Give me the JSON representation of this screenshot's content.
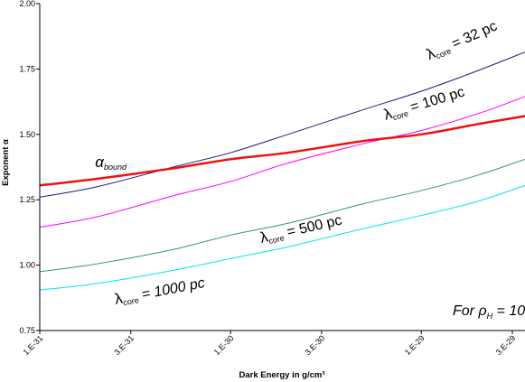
{
  "chart_data": {
    "type": "line",
    "title": "",
    "xlabel": "Dark Energy in g/cm³",
    "ylabel": "Exponent α",
    "xscale": "log",
    "xlim": [
      1e-31,
      3.5e-29
    ],
    "ylim": [
      0.75,
      2.0
    ],
    "x_ticks": [
      {
        "value": 1e-31,
        "label": "1.E-31"
      },
      {
        "value": 3e-31,
        "label": "3.E-31"
      },
      {
        "value": 1e-30,
        "label": "1.E-30"
      },
      {
        "value": 3e-30,
        "label": "3.E-30"
      },
      {
        "value": 1e-29,
        "label": "1.E-29"
      },
      {
        "value": 3e-29,
        "label": "3.E-29"
      }
    ],
    "y_ticks": [
      {
        "value": 0.75,
        "label": "0.75"
      },
      {
        "value": 1.0,
        "label": "1.00"
      },
      {
        "value": 1.25,
        "label": "1.25"
      },
      {
        "value": 1.5,
        "label": "1.50"
      },
      {
        "value": 1.75,
        "label": "1.75"
      },
      {
        "value": 2.0,
        "label": "2.00"
      }
    ],
    "grid": false,
    "x": [
      1e-31,
      2e-31,
      5e-31,
      1e-30,
      2e-30,
      5e-30,
      1e-29,
      2e-29,
      3.5e-29
    ],
    "series": [
      {
        "key": "lambda_32",
        "color": "#1a1a80",
        "width": 1,
        "y": [
          1.26,
          1.3,
          1.375,
          1.43,
          1.5,
          1.595,
          1.665,
          1.745,
          1.815
        ]
      },
      {
        "key": "lambda_100",
        "color": "#ff00ff",
        "width": 1,
        "y": [
          1.145,
          1.185,
          1.265,
          1.32,
          1.39,
          1.465,
          1.515,
          1.58,
          1.645
        ]
      },
      {
        "key": "alpha_bound",
        "color": "#ee1111",
        "width": 2.5,
        "y": [
          1.305,
          1.33,
          1.37,
          1.405,
          1.43,
          1.475,
          1.5,
          1.54,
          1.57
        ]
      },
      {
        "key": "lambda_500",
        "color": "#339977",
        "width": 1,
        "y": [
          0.975,
          1.005,
          1.06,
          1.115,
          1.16,
          1.235,
          1.285,
          1.345,
          1.405
        ]
      },
      {
        "key": "lambda_1000",
        "color": "#00e5ee",
        "width": 1,
        "y": [
          0.905,
          0.93,
          0.98,
          1.025,
          1.07,
          1.14,
          1.19,
          1.245,
          1.305
        ]
      }
    ],
    "curve_labels": [
      {
        "series": "lambda_32",
        "symbol": "λ",
        "sub": "core",
        "text": " = 32 pc",
        "x": 1.1e-29,
        "y": 1.785,
        "angle": -24
      },
      {
        "series": "lambda_100",
        "symbol": "λ",
        "sub": "core",
        "text": " = 100 pc",
        "x": 6.5e-30,
        "y": 1.555,
        "angle": -17
      },
      {
        "series": "alpha_bound",
        "symbol": "α",
        "sub": "bound",
        "text": "",
        "x": 1.95e-31,
        "y": 1.375,
        "angle": 0
      },
      {
        "series": "lambda_500",
        "symbol": "λ",
        "sub": "core",
        "text": " = 500 pc",
        "x": 1.45e-30,
        "y": 1.085,
        "angle": -13
      },
      {
        "series": "lambda_1000",
        "symbol": "λ",
        "sub": "core",
        "text": " = 1000 pc",
        "x": 2.5e-31,
        "y": 0.85,
        "angle": -11
      }
    ],
    "annotation": {
      "prefix": "For ρ",
      "sub": "H",
      "text": " = 10"
    }
  }
}
